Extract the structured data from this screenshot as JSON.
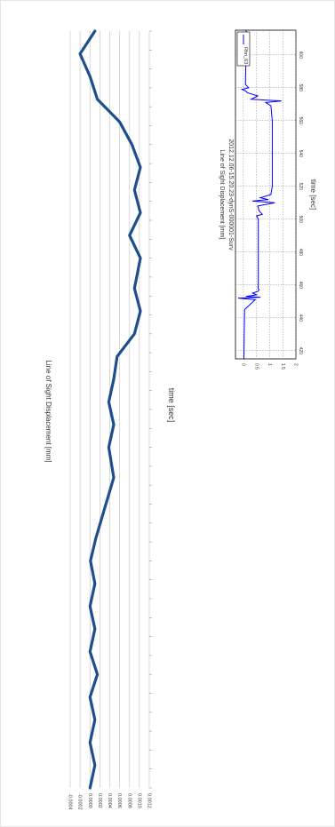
{
  "chart_data": [
    {
      "type": "line",
      "title": "",
      "xlabel": "time [sec]",
      "ylabel": "Line of Sight Displacement [mm]",
      "ylim": [
        -0.0004,
        0.0012
      ],
      "y_ticks": [
        "0.0012",
        "0.0010",
        "0.0008",
        "0.0006",
        "0.0004",
        "0.0002",
        "0.0000",
        "-0.0002",
        "-0.0004"
      ],
      "grid": true,
      "series_color": "#1f4e8c",
      "series": [
        {
          "name": "",
          "x": [
            0,
            0.03,
            0.06,
            0.09,
            0.12,
            0.15,
            0.18,
            0.21,
            0.24,
            0.27,
            0.3,
            0.33,
            0.37,
            0.41,
            0.45,
            0.48,
            0.51,
            0.54,
            0.57,
            0.6,
            0.63,
            0.66,
            0.7,
            0.73,
            0.76,
            0.79,
            0.82,
            0.85,
            0.88,
            0.91,
            0.94,
            0.97,
            1.0
          ],
          "y": [
            0.0,
            0.0001,
            0.0,
            0.0001,
            0.0,
            0.00015,
            0.0,
            0.0001,
            0.0,
            0.0001,
            1e-05,
            0.00012,
            0.0003,
            0.00048,
            0.00038,
            0.00048,
            0.00038,
            0.00048,
            0.00055,
            0.0009,
            0.00102,
            0.0009,
            0.00102,
            0.0008,
            0.00102,
            0.0009,
            0.00102,
            0.00085,
            0.0006,
            0.00015,
            0.0,
            -0.0002,
            0.0001
          ]
        }
      ]
    },
    {
      "type": "line",
      "title": "2012.12.06-15.20.23-dynS-000001-Surv",
      "xlabel": "time [sec]",
      "ylabel": "Line of Sight Displacement [mm]",
      "xlim": [
        415,
        615
      ],
      "ylim": [
        -0.3,
        2
      ],
      "x_ticks": [
        420,
        440,
        460,
        480,
        500,
        520,
        540,
        560,
        580,
        600
      ],
      "y_ticks": [
        "2",
        "1.5",
        "1",
        "0.5",
        "0"
      ],
      "grid": true,
      "legend": "Rhn_63",
      "legend_position": "top-right",
      "series_color": "#0000ff",
      "series": [
        {
          "name": "Rhn_63",
          "x": [
            415,
            430,
            445,
            451,
            452,
            452.5,
            453,
            454,
            455,
            456,
            457,
            458,
            460,
            480,
            500,
            502,
            503,
            505,
            508,
            510,
            511,
            512,
            513,
            515,
            520,
            540,
            560,
            569,
            571,
            572,
            573,
            575,
            577,
            578,
            579,
            580,
            582,
            600,
            615
          ],
          "y": [
            0.02,
            0.03,
            0.05,
            0.45,
            -0.2,
            0.65,
            0.1,
            0.5,
            0.35,
            0.55,
            0.6,
            0.56,
            0.57,
            0.57,
            0.57,
            0.5,
            0.72,
            0.6,
            0.55,
            1.2,
            0.35,
            0.95,
            0.65,
            1.05,
            1.1,
            1.1,
            1.1,
            1.05,
            0.85,
            1.45,
            0.3,
            0.55,
            0.15,
            0.1,
            -0.05,
            0.2,
            0.08,
            0.1,
            0.11
          ]
        }
      ]
    }
  ]
}
